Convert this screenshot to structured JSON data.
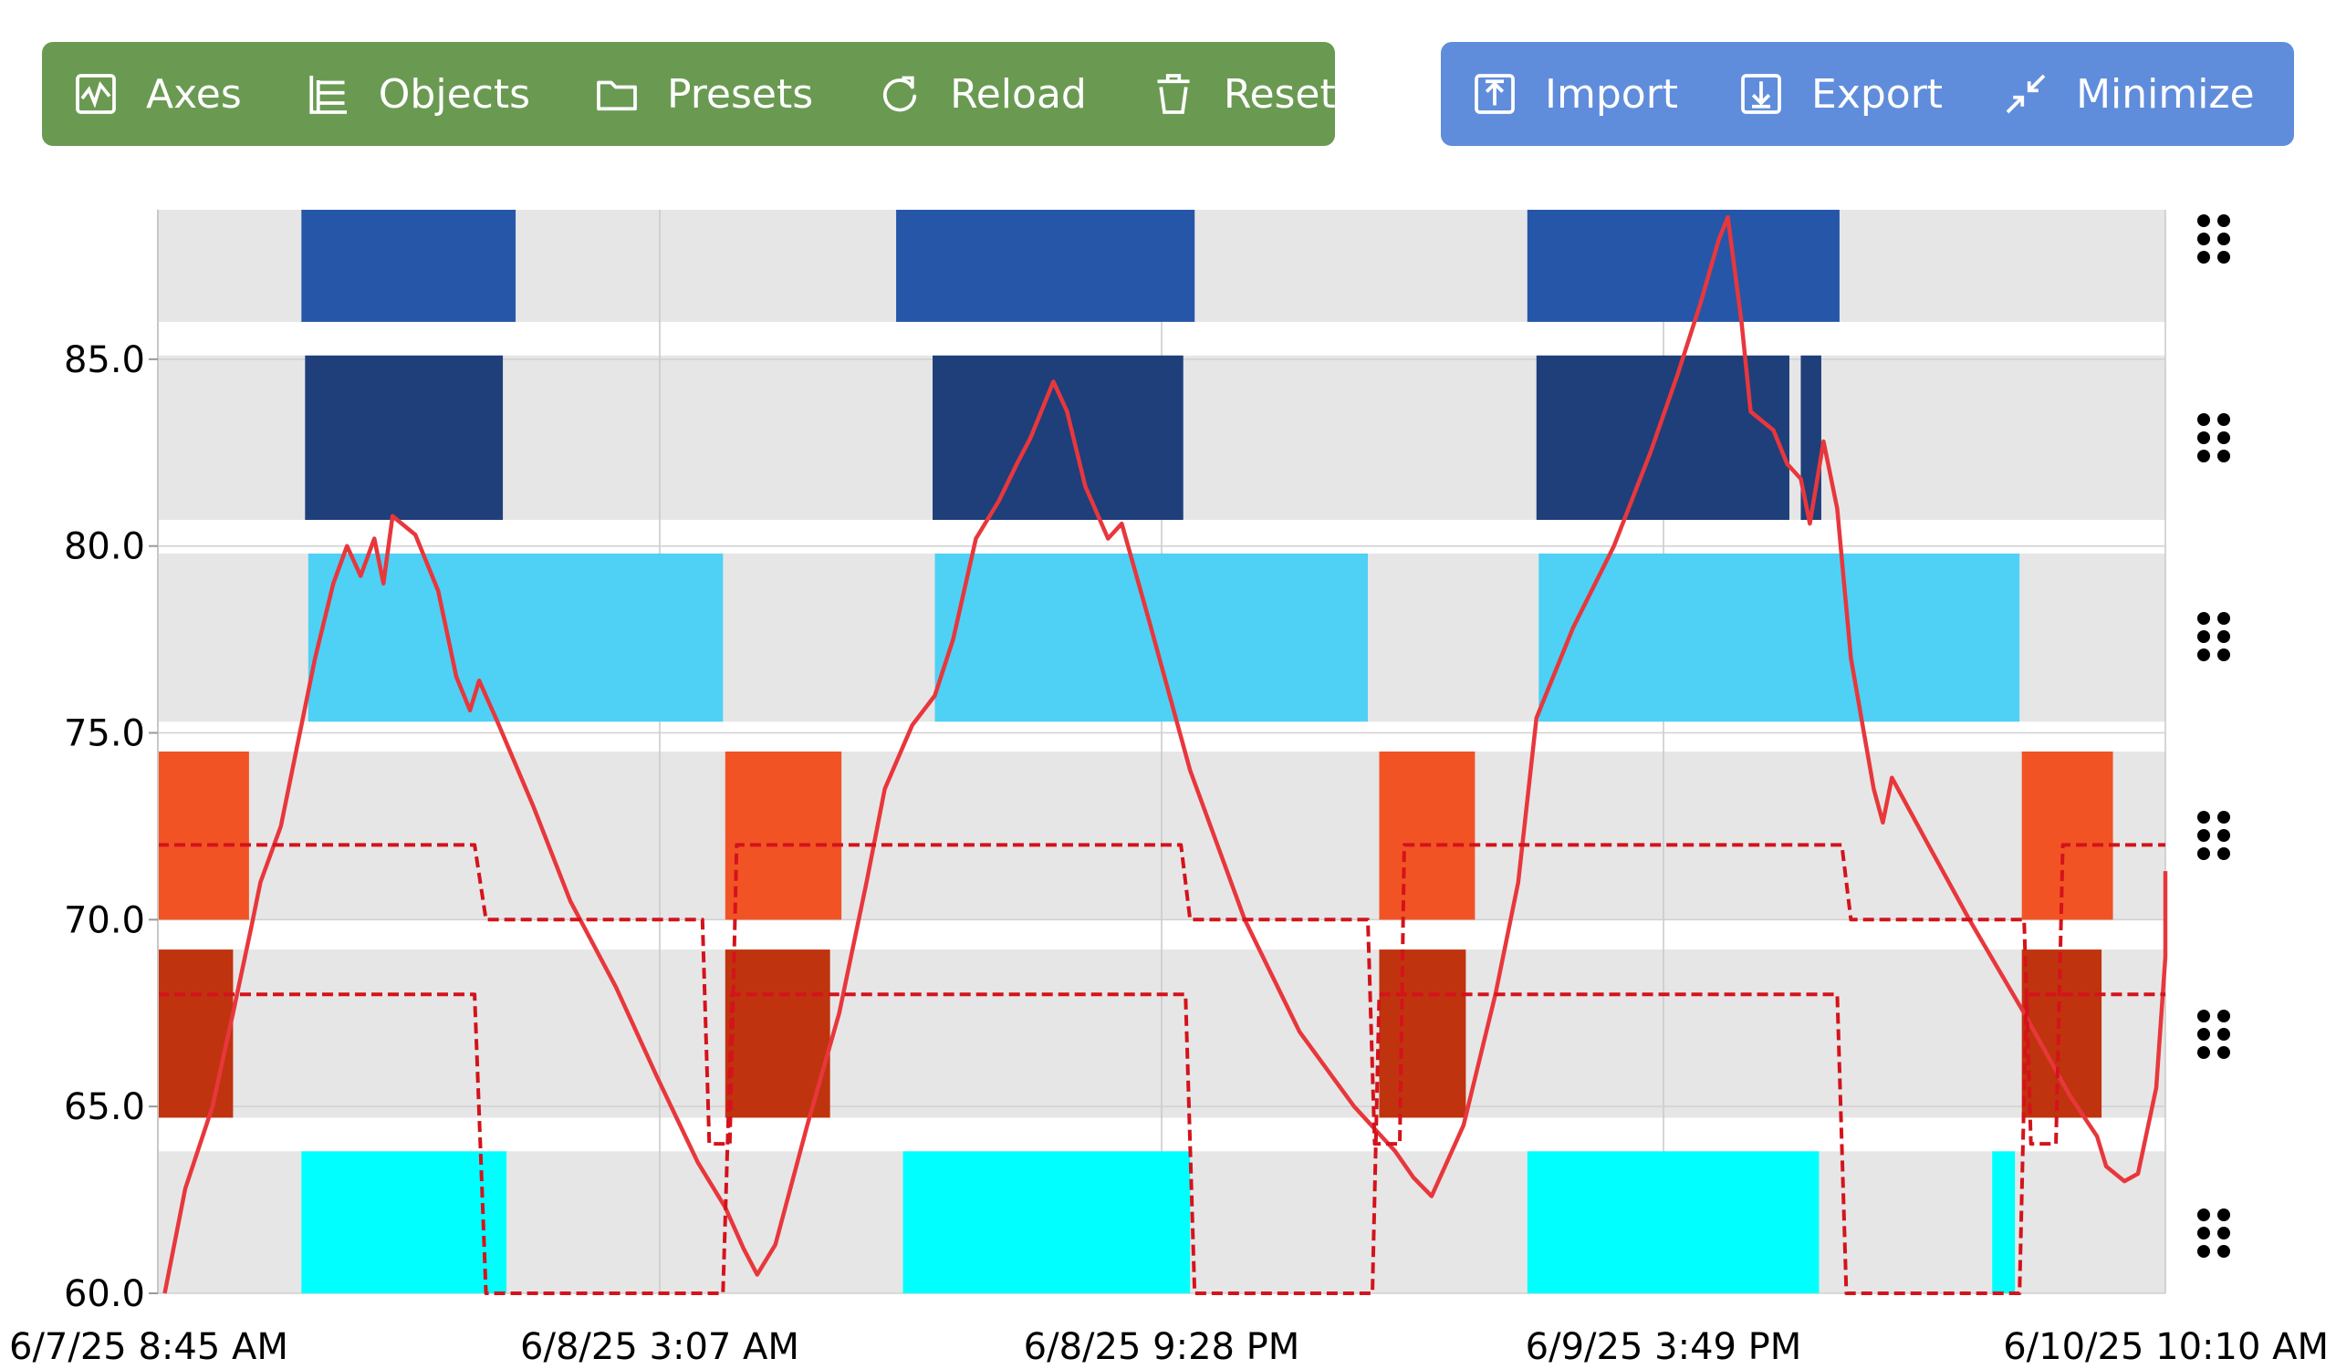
{
  "toolbar_left": {
    "color": "#6a9a52",
    "buttons": [
      {
        "label": "Axes",
        "icon": "axes-icon"
      },
      {
        "label": "Objects",
        "icon": "objects-icon"
      },
      {
        "label": "Presets",
        "icon": "folder-icon"
      },
      {
        "label": "Reload",
        "icon": "reload-icon"
      },
      {
        "label": "Reset",
        "icon": "trash-icon"
      }
    ]
  },
  "toolbar_right": {
    "color": "#608ddb",
    "buttons": [
      {
        "label": "Import",
        "icon": "import-icon"
      },
      {
        "label": "Export",
        "icon": "export-icon"
      },
      {
        "label": "Minimize",
        "icon": "minimize-icon"
      }
    ]
  },
  "chart_data": {
    "type": "line",
    "title": "",
    "xlabel": "",
    "ylabel": "",
    "ylim": [
      60,
      89
    ],
    "xlim": [
      "2025-06-07 08:45",
      "2025-06-10 10:10"
    ],
    "x_ticks": [
      "6/7/25 8:45 AM",
      "6/8/25 3:07 AM",
      "6/8/25 9:28 PM",
      "6/9/25 3:49 PM",
      "6/10/25 10:10 AM"
    ],
    "y_ticks": [
      "60.0",
      "65.0",
      "70.0",
      "75.0",
      "80.0",
      "85.0"
    ],
    "grid": true,
    "lane_background": "#e6e6e6",
    "lanes": [
      {
        "range": [
          86,
          89
        ],
        "color": "#2656a8",
        "segments": [
          [
            "2025-06-07 14:00",
            "2025-06-07 21:50"
          ],
          [
            "2025-06-08 11:45",
            "2025-06-08 22:40"
          ],
          [
            "2025-06-09 10:50",
            "2025-06-09 22:15"
          ]
        ]
      },
      {
        "range": [
          80.7,
          85.1
        ],
        "color": "#1e3f7a",
        "segments": [
          [
            "2025-06-07 14:08",
            "2025-06-07 21:22"
          ],
          [
            "2025-06-08 13:05",
            "2025-06-08 22:15"
          ],
          [
            "2025-06-09 11:10",
            "2025-06-09 20:25"
          ],
          [
            "2025-06-09 20:50",
            "2025-06-09 21:35"
          ]
        ]
      },
      {
        "range": [
          75.3,
          79.8
        ],
        "color": "#4fd0f5",
        "segments": [
          [
            "2025-06-07 14:15",
            "2025-06-08 05:25"
          ],
          [
            "2025-06-08 13:10",
            "2025-06-09 05:00"
          ],
          [
            "2025-06-09 11:15",
            "2025-06-10 04:50"
          ]
        ]
      },
      {
        "range": [
          70,
          74.5
        ],
        "color": "#f25325",
        "segments": [
          [
            "2025-06-07 08:45",
            "2025-06-07 12:05"
          ],
          [
            "2025-06-08 05:30",
            "2025-06-08 09:45"
          ],
          [
            "2025-06-09 05:25",
            "2025-06-09 08:55"
          ],
          [
            "2025-06-10 04:55",
            "2025-06-10 08:15"
          ]
        ]
      },
      {
        "range": [
          64.7,
          69.2
        ],
        "color": "#c0330f",
        "segments": [
          [
            "2025-06-07 08:45",
            "2025-06-07 11:30"
          ],
          [
            "2025-06-08 05:30",
            "2025-06-08 09:20"
          ],
          [
            "2025-06-09 05:25",
            "2025-06-09 08:35"
          ],
          [
            "2025-06-10 04:55",
            "2025-06-10 07:50"
          ]
        ]
      },
      {
        "range": [
          60,
          63.8
        ],
        "color": "#00ffff",
        "segments": [
          [
            "2025-06-07 14:00",
            "2025-06-07 21:30"
          ],
          [
            "2025-06-08 12:00",
            "2025-06-08 22:30"
          ],
          [
            "2025-06-09 10:50",
            "2025-06-09 21:30"
          ],
          [
            "2025-06-10 03:50",
            "2025-06-10 04:40"
          ]
        ]
      }
    ],
    "series": [
      {
        "style": "solid",
        "color": "#e8373c",
        "points": [
          [
            "2025-06-07 09:00",
            60
          ],
          [
            "2025-06-07 09:45",
            62.8
          ],
          [
            "2025-06-07 10:45",
            65
          ],
          [
            "2025-06-07 11:30",
            67.5
          ],
          [
            "2025-06-07 12:10",
            69.8
          ],
          [
            "2025-06-07 12:30",
            71
          ],
          [
            "2025-06-07 13:15",
            72.5
          ],
          [
            "2025-06-07 14:05",
            75.5
          ],
          [
            "2025-06-07 14:30",
            77
          ],
          [
            "2025-06-07 15:10",
            79
          ],
          [
            "2025-06-07 15:40",
            80
          ],
          [
            "2025-06-07 16:10",
            79.2
          ],
          [
            "2025-06-07 16:40",
            80.2
          ],
          [
            "2025-06-07 17:00",
            79
          ],
          [
            "2025-06-07 17:20",
            80.8
          ],
          [
            "2025-06-07 18:10",
            80.3
          ],
          [
            "2025-06-07 19:00",
            78.8
          ],
          [
            "2025-06-07 19:40",
            76.5
          ],
          [
            "2025-06-07 20:10",
            75.6
          ],
          [
            "2025-06-07 20:30",
            76.4
          ],
          [
            "2025-06-07 21:10",
            75.3
          ],
          [
            "2025-06-07 22:30",
            73
          ],
          [
            "2025-06-07 23:50",
            70.5
          ],
          [
            "2025-06-08 01:30",
            68.2
          ],
          [
            "2025-06-08 03:00",
            65.8
          ],
          [
            "2025-06-08 04:30",
            63.5
          ],
          [
            "2025-06-08 05:30",
            62.3
          ],
          [
            "2025-06-08 06:10",
            61.2
          ],
          [
            "2025-06-08 06:40",
            60.5
          ],
          [
            "2025-06-08 07:20",
            61.3
          ],
          [
            "2025-06-08 08:30",
            64.5
          ],
          [
            "2025-06-08 09:40",
            67.5
          ],
          [
            "2025-06-08 10:40",
            71
          ],
          [
            "2025-06-08 11:20",
            73.5
          ],
          [
            "2025-06-08 12:20",
            75.2
          ],
          [
            "2025-06-08 13:10",
            76
          ],
          [
            "2025-06-08 13:50",
            77.5
          ],
          [
            "2025-06-08 14:40",
            80.2
          ],
          [
            "2025-06-08 15:30",
            81.2
          ],
          [
            "2025-06-08 16:10",
            82.2
          ],
          [
            "2025-06-08 16:40",
            82.9
          ],
          [
            "2025-06-08 17:30",
            84.4
          ],
          [
            "2025-06-08 18:00",
            83.6
          ],
          [
            "2025-06-08 18:40",
            81.6
          ],
          [
            "2025-06-08 19:30",
            80.2
          ],
          [
            "2025-06-08 20:00",
            80.6
          ],
          [
            "2025-06-08 21:00",
            78
          ],
          [
            "2025-06-08 22:30",
            74
          ],
          [
            "2025-06-09 00:30",
            70
          ],
          [
            "2025-06-09 02:30",
            67
          ],
          [
            "2025-06-09 04:30",
            65
          ],
          [
            "2025-06-09 06:00",
            63.8
          ],
          [
            "2025-06-09 06:40",
            63.1
          ],
          [
            "2025-06-09 07:20",
            62.6
          ],
          [
            "2025-06-09 08:30",
            64.5
          ],
          [
            "2025-06-09 09:40",
            68
          ],
          [
            "2025-06-09 10:30",
            71
          ],
          [
            "2025-06-09 11:10",
            75.4
          ],
          [
            "2025-06-09 12:30",
            77.8
          ],
          [
            "2025-06-09 14:00",
            80
          ],
          [
            "2025-06-09 15:20",
            82.5
          ],
          [
            "2025-06-09 16:20",
            84.6
          ],
          [
            "2025-06-09 17:10",
            86.5
          ],
          [
            "2025-06-09 17:50",
            88.2
          ],
          [
            "2025-06-09 18:10",
            88.8
          ],
          [
            "2025-06-09 18:40",
            86
          ],
          [
            "2025-06-09 19:00",
            83.6
          ],
          [
            "2025-06-09 19:50",
            83.1
          ],
          [
            "2025-06-09 20:20",
            82.2
          ],
          [
            "2025-06-09 20:50",
            81.8
          ],
          [
            "2025-06-09 21:10",
            80.6
          ],
          [
            "2025-06-09 21:40",
            82.8
          ],
          [
            "2025-06-09 22:10",
            81
          ],
          [
            "2025-06-09 22:40",
            77
          ],
          [
            "2025-06-09 23:30",
            73.5
          ],
          [
            "2025-06-09 23:50",
            72.6
          ],
          [
            "2025-06-10 00:10",
            73.8
          ],
          [
            "2025-06-10 01:30",
            72
          ],
          [
            "2025-06-10 03:00",
            70
          ],
          [
            "2025-06-10 05:00",
            67.5
          ],
          [
            "2025-06-10 06:40",
            65.3
          ],
          [
            "2025-06-10 07:40",
            64.2
          ],
          [
            "2025-06-10 08:00",
            63.4
          ],
          [
            "2025-06-10 08:40",
            63
          ],
          [
            "2025-06-10 09:10",
            63.2
          ],
          [
            "2025-06-10 09:50",
            65.5
          ],
          [
            "2025-06-10 10:10",
            69
          ],
          [
            "2025-06-10 10:10",
            71.3
          ]
        ]
      },
      {
        "style": "dashed",
        "color": "#d4131b",
        "points": [
          [
            "2025-06-07 08:45",
            72
          ],
          [
            "2025-06-07 20:20",
            72
          ],
          [
            "2025-06-07 20:45",
            70
          ],
          [
            "2025-06-08 04:40",
            70
          ],
          [
            "2025-06-08 04:55",
            64
          ],
          [
            "2025-06-08 05:40",
            64
          ],
          [
            "2025-06-08 05:55",
            72
          ],
          [
            "2025-06-08 22:10",
            72
          ],
          [
            "2025-06-08 22:30",
            70
          ],
          [
            "2025-06-09 05:00",
            70
          ],
          [
            "2025-06-09 05:15",
            64
          ],
          [
            "2025-06-09 06:10",
            64
          ],
          [
            "2025-06-09 06:20",
            72
          ],
          [
            "2025-06-09 22:20",
            72
          ],
          [
            "2025-06-09 22:40",
            70
          ],
          [
            "2025-06-10 05:00",
            70
          ],
          [
            "2025-06-10 05:15",
            64
          ],
          [
            "2025-06-10 06:10",
            64
          ],
          [
            "2025-06-10 06:25",
            72
          ],
          [
            "2025-06-10 10:10",
            72
          ]
        ]
      },
      {
        "style": "dashed",
        "color": "#d4131b",
        "points": [
          [
            "2025-06-07 08:45",
            68
          ],
          [
            "2025-06-07 20:20",
            68
          ],
          [
            "2025-06-07 20:45",
            60
          ],
          [
            "2025-06-08 05:25",
            60
          ],
          [
            "2025-06-08 05:45",
            68
          ],
          [
            "2025-06-08 22:20",
            68
          ],
          [
            "2025-06-08 22:40",
            60
          ],
          [
            "2025-06-09 05:10",
            60
          ],
          [
            "2025-06-09 05:25",
            68
          ],
          [
            "2025-06-09 22:10",
            68
          ],
          [
            "2025-06-09 22:30",
            60
          ],
          [
            "2025-06-10 04:50",
            60
          ],
          [
            "2025-06-10 05:05",
            68
          ],
          [
            "2025-06-10 10:10",
            68
          ]
        ]
      }
    ]
  }
}
